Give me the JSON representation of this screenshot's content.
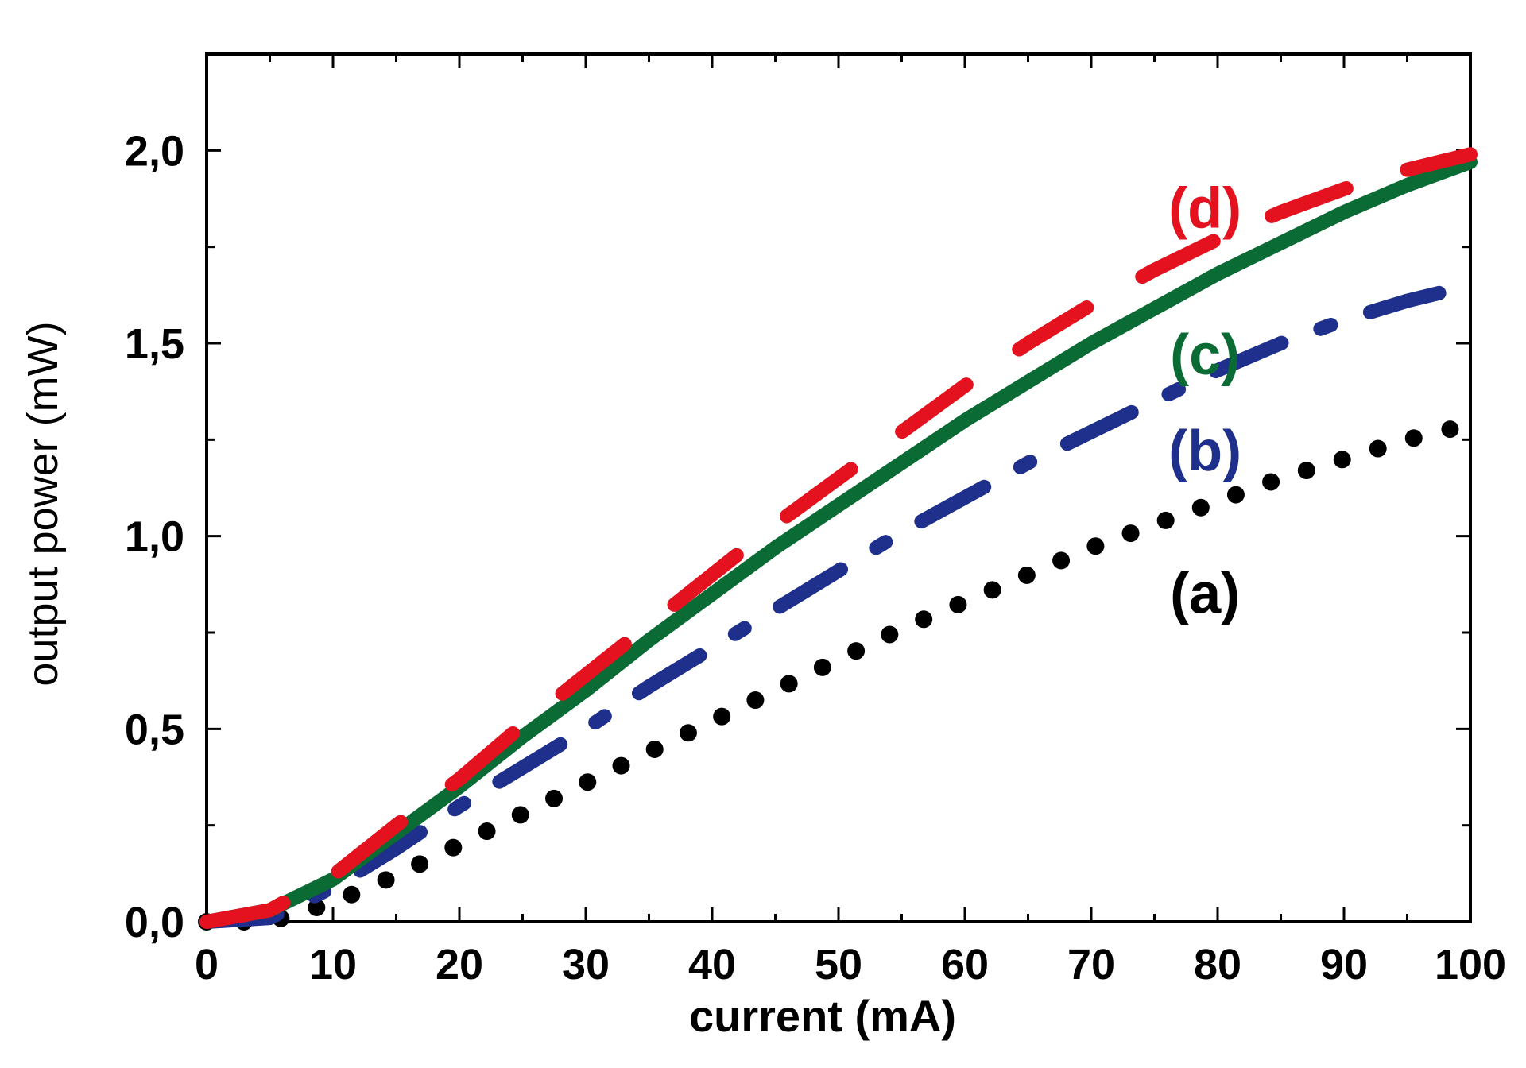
{
  "chart_data": {
    "type": "line",
    "title": "",
    "xlabel": "current (mA)",
    "ylabel": "output power (mW)",
    "xlim": [
      0,
      100
    ],
    "ylim": [
      0,
      2.25
    ],
    "x_ticks": [
      0,
      10,
      20,
      30,
      40,
      50,
      60,
      70,
      80,
      90,
      100
    ],
    "x_tick_labels": [
      "0",
      "10",
      "20",
      "30",
      "40",
      "50",
      "60",
      "70",
      "80",
      "90",
      "100"
    ],
    "y_ticks": [
      0,
      0.5,
      1.0,
      1.5,
      2.0
    ],
    "y_tick_labels": [
      "0,0",
      "0,5",
      "1,0",
      "1,5",
      "2,0"
    ],
    "grid": false,
    "legend": "inline-labels",
    "series": [
      {
        "name": "(a)",
        "color": "#000000",
        "style": "dotted",
        "x": [
          0,
          5,
          10,
          15,
          20,
          25,
          30,
          35,
          40,
          45,
          50,
          55,
          60,
          65,
          70,
          75,
          80,
          85,
          90,
          95,
          100
        ],
        "y": [
          0.0,
          0.0,
          0.05,
          0.12,
          0.2,
          0.28,
          0.36,
          0.44,
          0.52,
          0.6,
          0.68,
          0.76,
          0.83,
          0.9,
          0.97,
          1.03,
          1.09,
          1.15,
          1.2,
          1.25,
          1.29
        ]
      },
      {
        "name": "(b)",
        "color": "#1e2f8c",
        "style": "dash-dot",
        "x": [
          0,
          5,
          10,
          15,
          20,
          25,
          30,
          35,
          40,
          45,
          50,
          55,
          60,
          65,
          70,
          75,
          80,
          85,
          90,
          95,
          100
        ],
        "y": [
          0.0,
          0.01,
          0.09,
          0.19,
          0.3,
          0.4,
          0.5,
          0.61,
          0.71,
          0.81,
          0.91,
          1.01,
          1.1,
          1.19,
          1.27,
          1.35,
          1.43,
          1.5,
          1.56,
          1.61,
          1.65
        ]
      },
      {
        "name": "(c)",
        "color": "#0b6b34",
        "style": "solid",
        "x": [
          0,
          5,
          10,
          15,
          20,
          25,
          30,
          35,
          40,
          45,
          50,
          55,
          60,
          65,
          70,
          75,
          80,
          85,
          90,
          95,
          100
        ],
        "y": [
          0.0,
          0.03,
          0.11,
          0.23,
          0.35,
          0.48,
          0.6,
          0.73,
          0.85,
          0.97,
          1.08,
          1.19,
          1.3,
          1.4,
          1.5,
          1.59,
          1.68,
          1.76,
          1.84,
          1.91,
          1.97
        ]
      },
      {
        "name": "(d)",
        "color": "#e3121e",
        "style": "dashed",
        "x": [
          0,
          5,
          10,
          15,
          20,
          25,
          30,
          35,
          40,
          45,
          50,
          55,
          60,
          65,
          70,
          75,
          80,
          85,
          90,
          95,
          100
        ],
        "y": [
          0.0,
          0.03,
          0.12,
          0.25,
          0.37,
          0.51,
          0.64,
          0.77,
          0.9,
          1.03,
          1.15,
          1.27,
          1.39,
          1.5,
          1.6,
          1.69,
          1.77,
          1.84,
          1.9,
          1.95,
          1.99
        ]
      }
    ],
    "annotations": [
      {
        "text": "(a)",
        "x": 79,
        "y": 0.8,
        "color": "#000000"
      },
      {
        "text": "(b)",
        "x": 79,
        "y": 1.17,
        "color": "#1e2f8c"
      },
      {
        "text": "(c)",
        "x": 79,
        "y": 1.42,
        "color": "#0b6b34"
      },
      {
        "text": "(d)",
        "x": 79,
        "y": 1.8,
        "color": "#e3121e"
      }
    ]
  }
}
